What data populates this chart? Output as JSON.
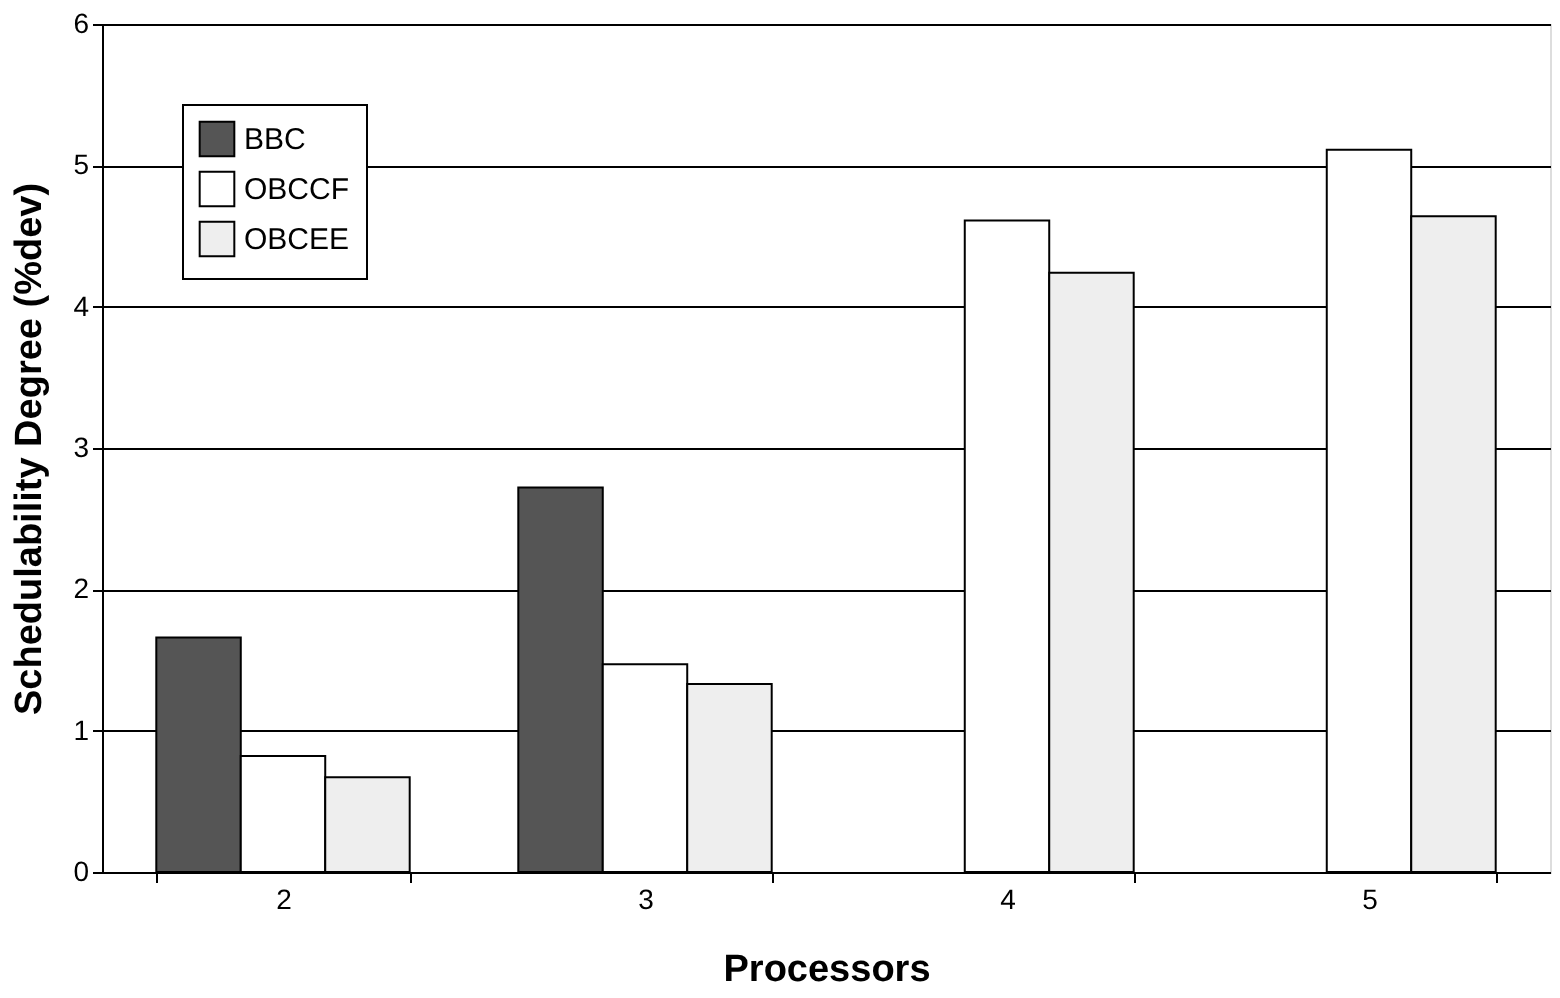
{
  "chart_data": {
    "type": "bar",
    "xlabel": "Processors",
    "ylabel": "Schedulability Degree (%dev)",
    "categories": [
      "2",
      "3",
      "4",
      "5"
    ],
    "series": [
      {
        "name": "BBC",
        "color": "#555555",
        "values": [
          1.66,
          2.72,
          null,
          null
        ]
      },
      {
        "name": "OBCCF",
        "color": "#ffffff",
        "values": [
          0.82,
          1.47,
          4.61,
          5.11
        ]
      },
      {
        "name": "OBCEE",
        "color": "#eeeeee",
        "values": [
          0.67,
          1.33,
          4.24,
          4.64
        ]
      }
    ],
    "ylim": [
      0,
      6
    ],
    "yticks": [
      0,
      1,
      2,
      3,
      4,
      5,
      6
    ],
    "grid": "y",
    "legend": "top left"
  }
}
